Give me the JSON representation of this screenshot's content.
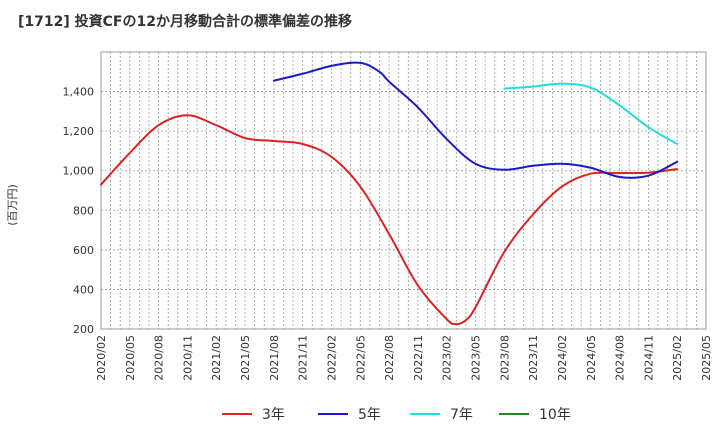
{
  "chart_data": {
    "type": "line",
    "title": "[1712]  投資CFの12か月移動合計の標準偏差の推移",
    "ylabel": "(百万円)",
    "xlabel": "",
    "ylim": [
      200,
      1600
    ],
    "yticks": [
      200,
      400,
      600,
      800,
      1000,
      1200,
      1400
    ],
    "xticks": [
      "2020/02",
      "2020/05",
      "2020/08",
      "2020/11",
      "2021/02",
      "2021/05",
      "2021/08",
      "2021/11",
      "2022/02",
      "2022/05",
      "2022/08",
      "2022/11",
      "2023/02",
      "2023/05",
      "2023/08",
      "2023/11",
      "2024/02",
      "2024/05",
      "2024/08",
      "2024/11",
      "2025/02",
      "2025/05"
    ],
    "grid": true,
    "legend_position": "bottom",
    "series": [
      {
        "name": "3年",
        "color": "#dd2222",
        "points": [
          [
            "2020/02",
            930
          ],
          [
            "2020/05",
            1090
          ],
          [
            "2020/08",
            1230
          ],
          [
            "2020/11",
            1280
          ],
          [
            "2021/02",
            1230
          ],
          [
            "2021/05",
            1165
          ],
          [
            "2021/08",
            1150
          ],
          [
            "2021/11",
            1135
          ],
          [
            "2022/02",
            1070
          ],
          [
            "2022/05",
            920
          ],
          [
            "2022/08",
            680
          ],
          [
            "2022/11",
            420
          ],
          [
            "2023/02",
            250
          ],
          [
            "2023/03",
            225
          ],
          [
            "2023/04",
            245
          ],
          [
            "2023/05",
            310
          ],
          [
            "2023/08",
            590
          ],
          [
            "2023/11",
            780
          ],
          [
            "2024/02",
            920
          ],
          [
            "2024/05",
            985
          ],
          [
            "2024/08",
            988
          ],
          [
            "2024/11",
            990
          ],
          [
            "2025/02",
            1008
          ]
        ]
      },
      {
        "name": "5年",
        "color": "#1a1acc",
        "points": [
          [
            "2021/08",
            1455
          ],
          [
            "2021/11",
            1490
          ],
          [
            "2022/02",
            1530
          ],
          [
            "2022/05",
            1545
          ],
          [
            "2022/07",
            1500
          ],
          [
            "2022/08",
            1450
          ],
          [
            "2022/11",
            1320
          ],
          [
            "2023/02",
            1160
          ],
          [
            "2023/05",
            1035
          ],
          [
            "2023/08",
            1005
          ],
          [
            "2023/11",
            1025
          ],
          [
            "2024/02",
            1035
          ],
          [
            "2024/05",
            1015
          ],
          [
            "2024/08",
            968
          ],
          [
            "2024/11",
            975
          ],
          [
            "2025/02",
            1045
          ]
        ]
      },
      {
        "name": "7年",
        "color": "#22dddd",
        "points": [
          [
            "2023/08",
            1415
          ],
          [
            "2023/11",
            1425
          ],
          [
            "2024/02",
            1440
          ],
          [
            "2024/05",
            1420
          ],
          [
            "2024/08",
            1330
          ],
          [
            "2024/11",
            1220
          ],
          [
            "2025/02",
            1135
          ]
        ]
      },
      {
        "name": "10年",
        "color": "#228822",
        "points": []
      }
    ]
  }
}
